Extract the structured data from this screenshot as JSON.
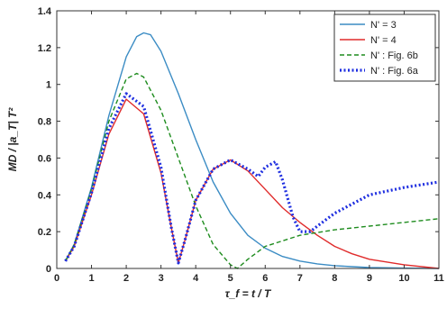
{
  "chart_data": {
    "type": "line",
    "title": "",
    "xlabel": "τ_f = t / T",
    "ylabel": "MD / |a_T| T²",
    "xlim": [
      0,
      11
    ],
    "ylim": [
      0,
      1.4
    ],
    "x_ticks": [
      "0",
      "1",
      "2",
      "3",
      "4",
      "5",
      "6",
      "7",
      "8",
      "9",
      "10",
      "11"
    ],
    "y_ticks": [
      "0",
      "0.2",
      "0.4",
      "0.6",
      "0.8",
      "1",
      "1.2",
      "1.4"
    ],
    "grid": false,
    "legend_position": "top-right",
    "series": [
      {
        "name": "N' = 3",
        "color": "#3b8cc4",
        "style": "solid",
        "x": [
          0.25,
          0.5,
          1.0,
          1.5,
          2.0,
          2.3,
          2.5,
          2.7,
          3.0,
          3.5,
          4.0,
          4.5,
          5.0,
          5.5,
          6.0,
          6.5,
          7.0,
          7.5,
          8.0,
          8.5,
          9.0,
          10.0,
          11.0
        ],
        "y": [
          0.04,
          0.13,
          0.44,
          0.83,
          1.15,
          1.26,
          1.28,
          1.27,
          1.18,
          0.95,
          0.7,
          0.47,
          0.3,
          0.18,
          0.11,
          0.065,
          0.04,
          0.025,
          0.015,
          0.01,
          0.005,
          0.002,
          0.0
        ]
      },
      {
        "name": "N' = 4",
        "color": "#e02b2b",
        "style": "solid",
        "x": [
          0.25,
          0.5,
          1.0,
          1.5,
          2.0,
          2.5,
          3.0,
          3.3,
          3.5,
          3.7,
          4.0,
          4.5,
          5.0,
          5.5,
          6.0,
          6.5,
          7.0,
          7.5,
          8.0,
          8.5,
          9.0,
          10.0,
          11.0
        ],
        "y": [
          0.04,
          0.12,
          0.4,
          0.73,
          0.92,
          0.84,
          0.52,
          0.22,
          0.03,
          0.16,
          0.37,
          0.54,
          0.59,
          0.53,
          0.43,
          0.33,
          0.25,
          0.18,
          0.12,
          0.08,
          0.05,
          0.02,
          0.0
        ]
      },
      {
        "name": "N' : Fig. 6b",
        "color": "#1e8c1e",
        "style": "dashed",
        "x": [
          0.25,
          0.5,
          1.0,
          1.5,
          2.0,
          2.3,
          2.5,
          3.0,
          3.5,
          4.0,
          4.5,
          5.0,
          5.2,
          5.5,
          6.0,
          7.0,
          8.0,
          9.0,
          10.0,
          11.0
        ],
        "y": [
          0.04,
          0.13,
          0.43,
          0.8,
          1.03,
          1.06,
          1.04,
          0.86,
          0.6,
          0.34,
          0.13,
          0.02,
          0.0,
          0.05,
          0.12,
          0.18,
          0.21,
          0.23,
          0.25,
          0.27
        ]
      },
      {
        "name": "N' : Fig. 6a",
        "color": "#1f2fe0",
        "style": "dotted",
        "x": [
          0.25,
          0.5,
          1.0,
          1.5,
          2.0,
          2.5,
          3.0,
          3.3,
          3.5,
          3.7,
          4.0,
          4.5,
          5.0,
          5.5,
          5.8,
          6.0,
          6.3,
          6.5,
          6.8,
          7.0,
          7.3,
          7.5,
          8.0,
          9.0,
          10.0,
          11.0
        ],
        "y": [
          0.04,
          0.12,
          0.41,
          0.76,
          0.95,
          0.88,
          0.55,
          0.22,
          0.03,
          0.16,
          0.37,
          0.54,
          0.59,
          0.54,
          0.5,
          0.55,
          0.58,
          0.48,
          0.28,
          0.2,
          0.2,
          0.23,
          0.3,
          0.4,
          0.44,
          0.47
        ]
      }
    ]
  }
}
